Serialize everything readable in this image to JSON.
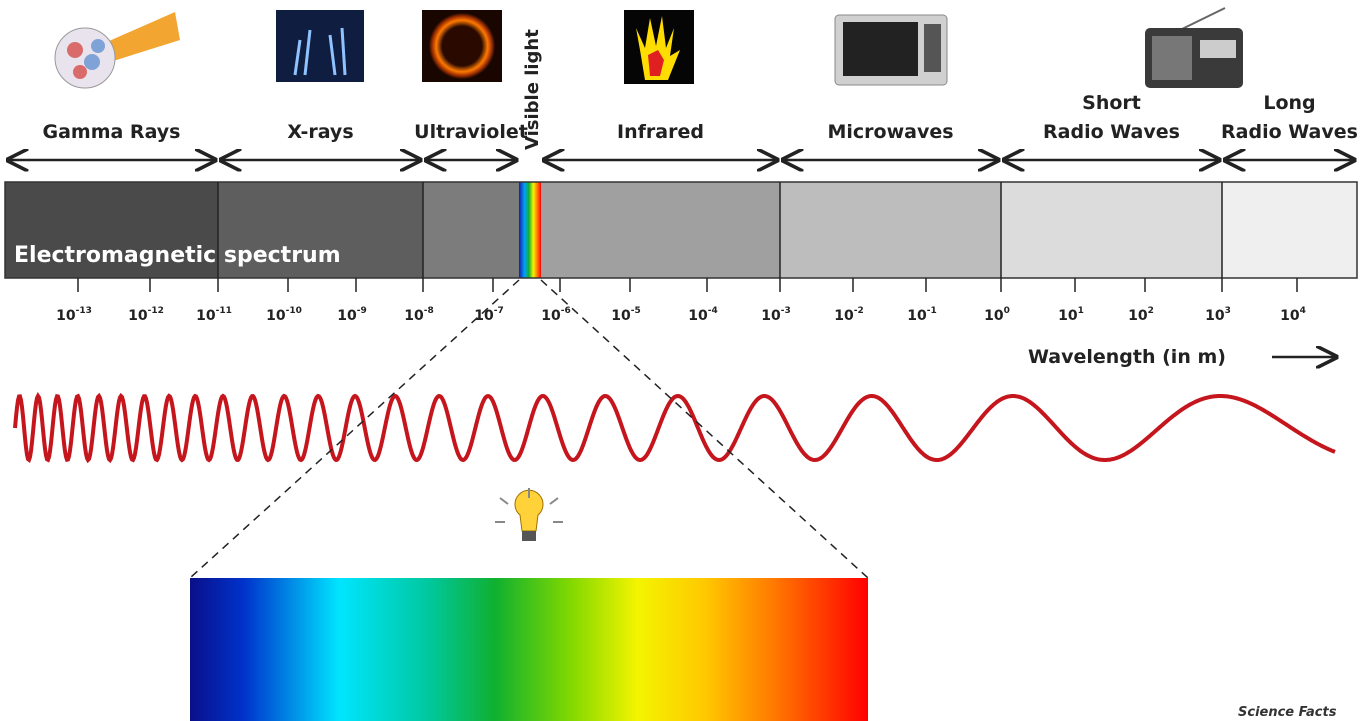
{
  "bands": [
    {
      "lines": [
        "Gamma Rays"
      ]
    },
    {
      "lines": [
        "X-rays"
      ]
    },
    {
      "lines": [
        "Ultraviolet"
      ]
    },
    {
      "lines": [
        "Infrared"
      ]
    },
    {
      "lines": [
        "Microwaves"
      ]
    },
    {
      "lines": [
        "Short",
        "Radio Waves"
      ]
    },
    {
      "lines": [
        "Long",
        "Radio Waves"
      ]
    }
  ],
  "visible_label": "Visible light",
  "spectrum_label": "Electromagnetic spectrum",
  "ticks": [
    {
      "base": "10",
      "exponent": "-13"
    },
    {
      "base": "10",
      "exponent": "-12"
    },
    {
      "base": "10",
      "exponent": "-11"
    },
    {
      "base": "10",
      "exponent": "-10"
    },
    {
      "base": "10",
      "exponent": "-9"
    },
    {
      "base": "10",
      "exponent": "-8"
    },
    {
      "base": "10",
      "exponent": "-7"
    },
    {
      "base": "10",
      "exponent": "-6"
    },
    {
      "base": "10",
      "exponent": "-5"
    },
    {
      "base": "10",
      "exponent": "-4"
    },
    {
      "base": "10",
      "exponent": "-3"
    },
    {
      "base": "10",
      "exponent": "-2"
    },
    {
      "base": "10",
      "exponent": "-1"
    },
    {
      "base": "10",
      "exponent": "0"
    },
    {
      "base": "10",
      "exponent": "1"
    },
    {
      "base": "10",
      "exponent": "2"
    },
    {
      "base": "10",
      "exponent": "3"
    },
    {
      "base": "10",
      "exponent": "4"
    }
  ],
  "axis_label": "Wavelength (in m)",
  "logo": "Science Facts"
}
